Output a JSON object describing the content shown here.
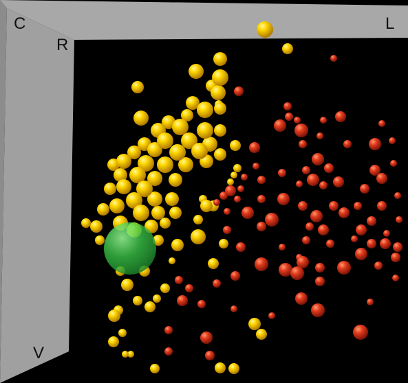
{
  "chart_data": {
    "type": "scatter",
    "view": "3d-perspective",
    "axis_labels": {
      "corner": "C",
      "right": "L",
      "inner": "R",
      "bottom": "V"
    },
    "panel_color": "#a8a8a8",
    "background": "#000000",
    "series": [
      {
        "color": "#ffd200",
        "points": [
          [
            385,
            43,
            12
          ],
          [
            418,
            71,
            8
          ],
          [
            320,
            86,
            10
          ],
          [
            285,
            104,
            11
          ],
          [
            320,
            113,
            12
          ],
          [
            308,
            125,
            9
          ],
          [
            200,
            127,
            9
          ],
          [
            317,
            135,
            11
          ],
          [
            205,
            172,
            11
          ],
          [
            280,
            150,
            10
          ],
          [
            298,
            160,
            12
          ],
          [
            320,
            158,
            9
          ],
          [
            272,
            168,
            9
          ],
          [
            245,
            178,
            10
          ],
          [
            262,
            185,
            12
          ],
          [
            230,
            190,
            11
          ],
          [
            298,
            190,
            12
          ],
          [
            320,
            190,
            9
          ],
          [
            210,
            210,
            10
          ],
          [
            240,
            205,
            12
          ],
          [
            275,
            205,
            12
          ],
          [
            305,
            210,
            11
          ],
          [
            290,
            220,
            12
          ],
          [
            258,
            222,
            12
          ],
          [
            225,
            218,
            11
          ],
          [
            195,
            222,
            10
          ],
          [
            180,
            235,
            11
          ],
          [
            165,
            240,
            9
          ],
          [
            212,
            238,
            12
          ],
          [
            240,
            240,
            12
          ],
          [
            270,
            240,
            11
          ],
          [
            300,
            235,
            10
          ],
          [
            320,
            225,
            9
          ],
          [
            342,
            212,
            8
          ],
          [
            345,
            245,
            6
          ],
          [
            340,
            255,
            5
          ],
          [
            335,
            265,
            5
          ],
          [
            175,
            255,
            10
          ],
          [
            200,
            255,
            12
          ],
          [
            225,
            260,
            11
          ],
          [
            255,
            262,
            10
          ],
          [
            180,
            272,
            11
          ],
          [
            210,
            275,
            12
          ],
          [
            160,
            275,
            9
          ],
          [
            195,
            292,
            12
          ],
          [
            225,
            290,
            11
          ],
          [
            250,
            290,
            10
          ],
          [
            170,
            300,
            11
          ],
          [
            150,
            305,
            9
          ],
          [
            205,
            310,
            12
          ],
          [
            230,
            310,
            10
          ],
          [
            255,
            310,
            9
          ],
          [
            175,
            325,
            11
          ],
          [
            140,
            330,
            9
          ],
          [
            125,
            325,
            7
          ],
          [
            195,
            335,
            11
          ],
          [
            220,
            330,
            10
          ],
          [
            240,
            325,
            8
          ],
          [
            145,
            350,
            7
          ],
          [
            230,
            350,
            8
          ],
          [
            258,
            357,
            9
          ],
          [
            288,
            345,
            11
          ],
          [
            288,
            320,
            7
          ],
          [
            300,
            300,
            9
          ],
          [
            295,
            290,
            6
          ],
          [
            310,
            300,
            8
          ],
          [
            325,
            355,
            7
          ],
          [
            310,
            384,
            8
          ],
          [
            250,
            380,
            5
          ],
          [
            175,
            395,
            7
          ],
          [
            210,
            395,
            8
          ],
          [
            185,
            415,
            9
          ],
          [
            200,
            438,
            7
          ],
          [
            218,
            447,
            8
          ],
          [
            228,
            435,
            6
          ],
          [
            240,
            420,
            7
          ],
          [
            172,
            452,
            7
          ],
          [
            166,
            460,
            9
          ],
          [
            178,
            485,
            6
          ],
          [
            165,
            498,
            8
          ],
          [
            190,
            516,
            5
          ],
          [
            182,
            516,
            5
          ],
          [
            225,
            537,
            7
          ],
          [
            320,
            536,
            8
          ],
          [
            340,
            537,
            8
          ],
          [
            370,
            472,
            9
          ],
          [
            380,
            487,
            8
          ],
          [
            318,
            152,
            6
          ]
        ]
      },
      {
        "color": "#dd3a1e",
        "points": [
          [
            485,
            85,
            5
          ],
          [
            347,
            133,
            7
          ],
          [
            418,
            155,
            6
          ],
          [
            420,
            170,
            6
          ],
          [
            432,
            175,
            5
          ],
          [
            407,
            183,
            9
          ],
          [
            438,
            190,
            10
          ],
          [
            470,
            175,
            5
          ],
          [
            495,
            170,
            8
          ],
          [
            465,
            198,
            5
          ],
          [
            440,
            210,
            6
          ],
          [
            370,
            215,
            8
          ],
          [
            545,
            210,
            9
          ],
          [
            555,
            180,
            5
          ],
          [
            570,
            205,
            5
          ],
          [
            572,
            238,
            5
          ],
          [
            545,
            248,
            8
          ],
          [
            462,
            232,
            9
          ],
          [
            478,
            245,
            7
          ],
          [
            445,
            248,
            6
          ],
          [
            410,
            252,
            6
          ],
          [
            380,
            262,
            6
          ],
          [
            355,
            258,
            5
          ],
          [
            350,
            275,
            5
          ],
          [
            325,
            285,
            6
          ],
          [
            315,
            295,
            5
          ],
          [
            455,
            262,
            9
          ],
          [
            470,
            270,
            6
          ],
          [
            492,
            265,
            8
          ],
          [
            435,
            268,
            5
          ],
          [
            555,
            260,
            8
          ],
          [
            530,
            275,
            7
          ],
          [
            578,
            285,
            5
          ],
          [
            412,
            290,
            9
          ],
          [
            380,
            290,
            6
          ],
          [
            345,
            290,
            5
          ],
          [
            330,
            308,
            5
          ],
          [
            360,
            310,
            9
          ],
          [
            395,
            320,
            10
          ],
          [
            380,
            330,
            7
          ],
          [
            440,
            300,
            7
          ],
          [
            460,
            315,
            9
          ],
          [
            485,
            300,
            7
          ],
          [
            500,
            310,
            8
          ],
          [
            555,
            300,
            7
          ],
          [
            520,
            300,
            6
          ],
          [
            540,
            322,
            7
          ],
          [
            580,
            320,
            5
          ],
          [
            450,
            330,
            6
          ],
          [
            470,
            335,
            8
          ],
          [
            525,
            335,
            8
          ],
          [
            562,
            340,
            5
          ],
          [
            560,
            355,
            8
          ],
          [
            578,
            360,
            7
          ],
          [
            540,
            355,
            7
          ],
          [
            515,
            348,
            5
          ],
          [
            445,
            350,
            6
          ],
          [
            480,
            355,
            6
          ],
          [
            330,
            335,
            6
          ],
          [
            350,
            360,
            7
          ],
          [
            410,
            360,
            5
          ],
          [
            435,
            375,
            5
          ],
          [
            525,
            370,
            9
          ],
          [
            575,
            375,
            7
          ],
          [
            380,
            385,
            10
          ],
          [
            415,
            393,
            10
          ],
          [
            440,
            382,
            9
          ],
          [
            465,
            390,
            7
          ],
          [
            500,
            390,
            10
          ],
          [
            550,
            387,
            6
          ],
          [
            342,
            402,
            7
          ],
          [
            432,
            398,
            10
          ],
          [
            575,
            405,
            5
          ],
          [
            465,
            410,
            7
          ],
          [
            315,
            413,
            6
          ],
          [
            260,
            408,
            6
          ],
          [
            275,
            420,
            6
          ],
          [
            265,
            438,
            8
          ],
          [
            293,
            443,
            6
          ],
          [
            438,
            435,
            9
          ],
          [
            462,
            452,
            10
          ],
          [
            538,
            440,
            5
          ],
          [
            340,
            450,
            5
          ],
          [
            245,
            481,
            6
          ],
          [
            300,
            492,
            9
          ],
          [
            524,
            484,
            11
          ],
          [
            305,
            518,
            7
          ],
          [
            245,
            512,
            6
          ],
          [
            395,
            460,
            5
          ],
          [
            335,
            278,
            8
          ],
          [
            372,
            242,
            5
          ],
          [
            505,
            210,
            6
          ]
        ]
      },
      {
        "color": "#44dd55",
        "points": [
          [
            189,
            362,
            38
          ]
        ]
      }
    ]
  }
}
